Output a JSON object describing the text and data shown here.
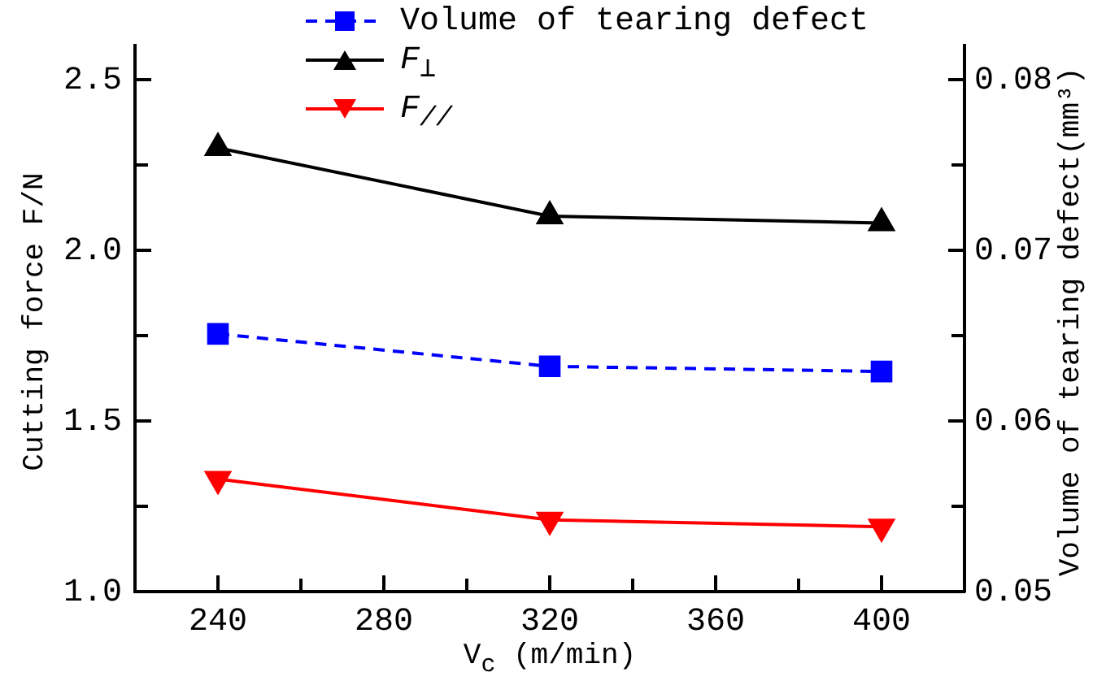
{
  "chart_data": {
    "type": "line",
    "x": [
      240,
      320,
      400
    ],
    "xlabel": "V$_{c}$ (m/min)",
    "ylabel": "Cutting force F/N",
    "y2label": "Volume of tearing defect(mm³)",
    "series": [
      {
        "name": "Volume of tearing defect",
        "color": "#0000ff",
        "values": [
          0.0651,
          0.0632,
          0.0629
        ],
        "axis": "y2",
        "marker": "square",
        "line_style": "dashed"
      },
      {
        "name": "F$_{⊥}$",
        "color": "#000000",
        "values": [
          2.3,
          2.1,
          2.08
        ],
        "marker": "triangle",
        "line_style": "solid"
      },
      {
        "name": "F$_{//}$",
        "color": "#ff0000",
        "values": [
          1.33,
          1.21,
          1.19
        ],
        "marker": "triangle-down",
        "line_style": "solid"
      }
    ],
    "xlim": [
      220,
      420
    ],
    "xticks": [
      {
        "value": 220,
        "label": null
      },
      240,
      {
        "value": 260,
        "label": null
      },
      280,
      {
        "value": 300,
        "label": null
      },
      320,
      {
        "value": 340,
        "label": null
      },
      360,
      {
        "value": 380,
        "label": null
      },
      400,
      {
        "value": 420,
        "label": null
      }
    ],
    "ylim": [
      1.0,
      2.6
    ],
    "yticks": [
      {
        "value": 1.0,
        "label": "1.0"
      },
      {
        "value": 1.25,
        "label": null
      },
      1.5,
      {
        "value": 1.75,
        "label": null
      },
      {
        "value": 2.0,
        "label": "2.0"
      },
      {
        "value": 2.25,
        "label": null
      },
      2.5
    ],
    "y2lim": [
      0.05,
      0.082
    ],
    "y2ticks": [
      0.05,
      {
        "value": 0.055,
        "label": null
      },
      0.06,
      {
        "value": 0.065,
        "label": null
      },
      0.07,
      {
        "value": 0.075,
        "label": null
      },
      0.08
    ],
    "grid": false,
    "legend": "top"
  }
}
